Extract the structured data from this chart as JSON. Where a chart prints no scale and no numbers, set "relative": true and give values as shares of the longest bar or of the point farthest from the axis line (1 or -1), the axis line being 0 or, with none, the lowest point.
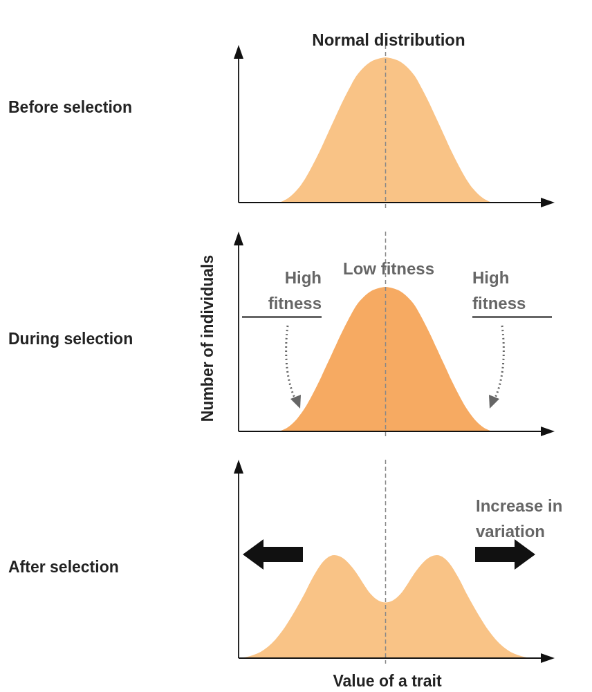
{
  "chart_data": [
    {
      "type": "area",
      "relative": true,
      "annotations": [
        "Before selection",
        "Normal distribution"
      ],
      "categories": [
        null,
        null,
        null,
        null,
        null,
        null,
        null,
        null,
        null,
        null,
        null,
        null,
        null,
        null,
        null,
        null,
        null,
        null,
        null,
        null,
        null,
        null,
        null,
        null,
        null,
        null,
        null,
        null,
        null,
        null,
        null,
        null,
        null,
        null,
        null,
        null,
        null,
        null,
        null,
        null,
        null
      ],
      "series": [
        {
          "color": "#f9c386",
          "values": [
            0,
            0,
            0,
            0,
            0,
            0,
            0.01,
            0.04,
            0.09,
            0.16,
            0.25,
            0.35,
            0.46,
            0.57,
            0.68,
            0.78,
            0.87,
            0.93,
            0.97,
            0.99,
            1,
            0.99,
            0.97,
            0.93,
            0.87,
            0.78,
            0.68,
            0.57,
            0.46,
            0.35,
            0.25,
            0.16,
            0.09,
            0.04,
            0.01,
            0,
            0,
            0,
            0,
            0,
            0
          ]
        }
      ]
    },
    {
      "type": "area",
      "ylabel": "Number of individuals",
      "relative": true,
      "annotations": [
        "During selection",
        "High fitness",
        "Low fitness",
        "High fitness"
      ],
      "categories": [
        null,
        null,
        null,
        null,
        null,
        null,
        null,
        null,
        null,
        null,
        null,
        null,
        null,
        null,
        null,
        null,
        null,
        null,
        null,
        null,
        null,
        null,
        null,
        null,
        null,
        null,
        null,
        null,
        null,
        null,
        null,
        null,
        null,
        null,
        null,
        null,
        null,
        null,
        null,
        null,
        null
      ],
      "series": [
        {
          "color": "#f6aa62",
          "values": [
            0,
            0,
            0,
            0,
            0,
            0,
            0.01,
            0.04,
            0.09,
            0.16,
            0.25,
            0.35,
            0.46,
            0.57,
            0.68,
            0.78,
            0.87,
            0.93,
            0.97,
            0.99,
            1,
            0.99,
            0.97,
            0.93,
            0.87,
            0.78,
            0.68,
            0.57,
            0.46,
            0.35,
            0.25,
            0.16,
            0.09,
            0.04,
            0.01,
            0,
            0,
            0,
            0,
            0,
            0
          ]
        }
      ]
    },
    {
      "type": "area",
      "xlabel": "Value of a trait",
      "relative": true,
      "annotations": [
        "After selection",
        "Increase in variation"
      ],
      "categories": [
        null,
        null,
        null,
        null,
        null,
        null,
        null,
        null,
        null,
        null,
        null,
        null,
        null,
        null,
        null,
        null,
        null,
        null,
        null,
        null,
        null,
        null,
        null,
        null,
        null,
        null,
        null,
        null,
        null,
        null,
        null,
        null,
        null,
        null,
        null,
        null,
        null,
        null,
        null,
        null,
        null
      ],
      "series": [
        {
          "color": "#f9c386",
          "values": [
            0,
            0.01,
            0.03,
            0.06,
            0.11,
            0.18,
            0.27,
            0.38,
            0.5,
            0.63,
            0.77,
            0.89,
            0.97,
            1,
            0.98,
            0.92,
            0.83,
            0.72,
            0.62,
            0.56,
            0.54,
            0.56,
            0.62,
            0.72,
            0.83,
            0.92,
            0.98,
            1,
            0.97,
            0.89,
            0.77,
            0.63,
            0.5,
            0.38,
            0.27,
            0.18,
            0.11,
            0.06,
            0.03,
            0.01,
            0
          ]
        }
      ]
    }
  ]
}
